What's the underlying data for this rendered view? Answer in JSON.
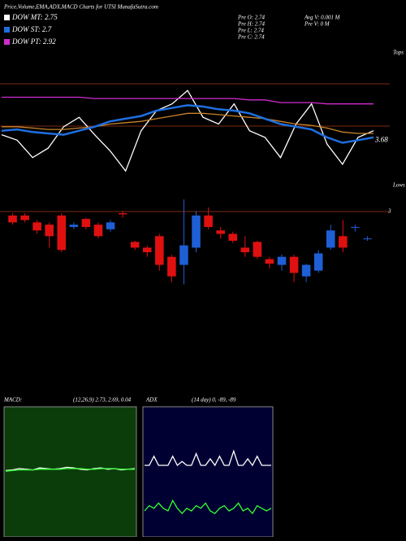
{
  "chart_data": [
    {
      "type": "line",
      "title": "Price,Volume,EMA,ADX,MACD Charts for UTSI MunafaSutra.com",
      "stats": [
        "Pre O: 2.74",
        "Pre H: 2.74",
        "Pre L: 2.74",
        "Pre C: 2.74",
        "Avg V: 0.001 M",
        "Pre V: 0 M"
      ],
      "top_label": "Tops",
      "bottom_label": "Lows",
      "last_value": 3.68,
      "ylim": [
        3.33,
        4.33
      ],
      "series": [
        {
          "name": "DOW MT: 2.75",
          "color": "#ffffff",
          "values": [
            3.72,
            3.68,
            3.55,
            3.62,
            3.78,
            3.85,
            3.72,
            3.6,
            3.45,
            3.75,
            3.9,
            3.95,
            4.05,
            3.85,
            3.8,
            3.95,
            3.75,
            3.7,
            3.55,
            3.8,
            3.95,
            3.65,
            3.5,
            3.7,
            3.75
          ]
        },
        {
          "color": "#c8822a",
          "values": [
            3.78,
            3.78,
            3.77,
            3.76,
            3.76,
            3.77,
            3.78,
            3.8,
            3.81,
            3.82,
            3.84,
            3.86,
            3.88,
            3.88,
            3.87,
            3.86,
            3.85,
            3.84,
            3.82,
            3.8,
            3.79,
            3.77,
            3.74,
            3.73,
            3.73
          ]
        },
        {
          "name": "DOW ST: 2.7",
          "color": "#1e6fe0",
          "values": [
            3.75,
            3.76,
            3.74,
            3.73,
            3.72,
            3.75,
            3.78,
            3.82,
            3.84,
            3.86,
            3.9,
            3.92,
            3.94,
            3.93,
            3.91,
            3.9,
            3.88,
            3.84,
            3.8,
            3.78,
            3.76,
            3.7,
            3.66,
            3.68,
            3.7
          ]
        },
        {
          "name": "DOW PT: 2.92",
          "color": "#d02ccf",
          "values": [
            4.0,
            4.0,
            4.0,
            4.0,
            4.0,
            4.0,
            3.99,
            3.99,
            3.99,
            3.99,
            3.99,
            3.99,
            3.99,
            3.99,
            3.99,
            3.99,
            3.98,
            3.98,
            3.96,
            3.96,
            3.96,
            3.95,
            3.95,
            3.95,
            3.95
          ]
        }
      ]
    },
    {
      "type": "candlestick",
      "ylim": [
        2.2,
        3.05
      ],
      "up_color": "#1e5fd6",
      "down_color": "#e01010",
      "marker_label": 3,
      "open": [
        2.98,
        2.98,
        2.92,
        2.9,
        2.98,
        2.88,
        2.95,
        2.9,
        2.86,
        3.0,
        2.75,
        2.7,
        2.8,
        2.62,
        2.55,
        2.7,
        2.98,
        2.85,
        2.82,
        2.7,
        2.75,
        2.6,
        2.55,
        2.62,
        2.45,
        2.5,
        2.7,
        2.8,
        2.88,
        2.78
      ],
      "high": [
        3.0,
        3.0,
        2.94,
        2.92,
        3.0,
        2.92,
        2.96,
        2.92,
        2.94,
        3.02,
        2.76,
        2.72,
        2.82,
        2.64,
        3.12,
        3.02,
        3.05,
        2.88,
        2.84,
        2.8,
        2.76,
        2.62,
        2.64,
        2.64,
        2.56,
        2.68,
        2.9,
        2.94,
        2.9,
        2.8
      ],
      "low": [
        2.9,
        2.92,
        2.82,
        2.7,
        2.66,
        2.86,
        2.86,
        2.78,
        2.84,
        2.96,
        2.68,
        2.62,
        2.5,
        2.4,
        2.38,
        2.66,
        2.86,
        2.78,
        2.74,
        2.62,
        2.6,
        2.52,
        2.5,
        2.4,
        2.4,
        2.48,
        2.68,
        2.66,
        2.84,
        2.76
      ],
      "close": [
        2.92,
        2.94,
        2.85,
        2.8,
        2.68,
        2.9,
        2.88,
        2.8,
        2.92,
        2.99,
        2.7,
        2.66,
        2.55,
        2.45,
        2.72,
        2.98,
        2.88,
        2.82,
        2.76,
        2.66,
        2.62,
        2.56,
        2.62,
        2.48,
        2.55,
        2.65,
        2.85,
        2.7,
        2.88,
        2.78
      ]
    },
    {
      "type": "line",
      "title": "MACD:",
      "subtitle": "(12,26,9) 2.73, 2.69, 0.04",
      "background": "#0b3d0b",
      "ylim": [
        -1,
        1
      ],
      "series": [
        {
          "color": "#ffffff",
          "values": [
            0.02,
            0.03,
            0.05,
            0.04,
            0.03,
            0.06,
            0.05,
            0.04,
            0.05,
            0.07,
            0.06,
            0.04,
            0.03,
            0.05,
            0.06,
            0.04,
            0.05,
            0.03,
            0.04,
            0.05
          ]
        },
        {
          "color": "#33ff33",
          "values": [
            0.01,
            0.02,
            0.03,
            0.03,
            0.03,
            0.04,
            0.04,
            0.04,
            0.04,
            0.05,
            0.05,
            0.05,
            0.04,
            0.04,
            0.05,
            0.05,
            0.05,
            0.04,
            0.04,
            0.04
          ]
        }
      ]
    },
    {
      "type": "line",
      "title": "ADX",
      "subtitle": "(14 day) 0, -89, -89",
      "background": "#000033",
      "ylim": [
        0,
        100
      ],
      "series": [
        {
          "color": "#ffffff",
          "values": [
            55,
            55,
            62,
            55,
            55,
            55,
            62,
            55,
            58,
            55,
            55,
            64,
            55,
            55,
            60,
            55,
            62,
            55,
            55,
            66,
            55,
            55,
            60,
            55,
            62,
            55,
            55,
            55
          ]
        },
        {
          "color": "#33ff33",
          "values": [
            20,
            24,
            22,
            26,
            22,
            20,
            28,
            22,
            18,
            22,
            20,
            24,
            22,
            26,
            20,
            18,
            22,
            24,
            20,
            22,
            26,
            20,
            22,
            18,
            24,
            22,
            20,
            22
          ]
        }
      ]
    }
  ]
}
